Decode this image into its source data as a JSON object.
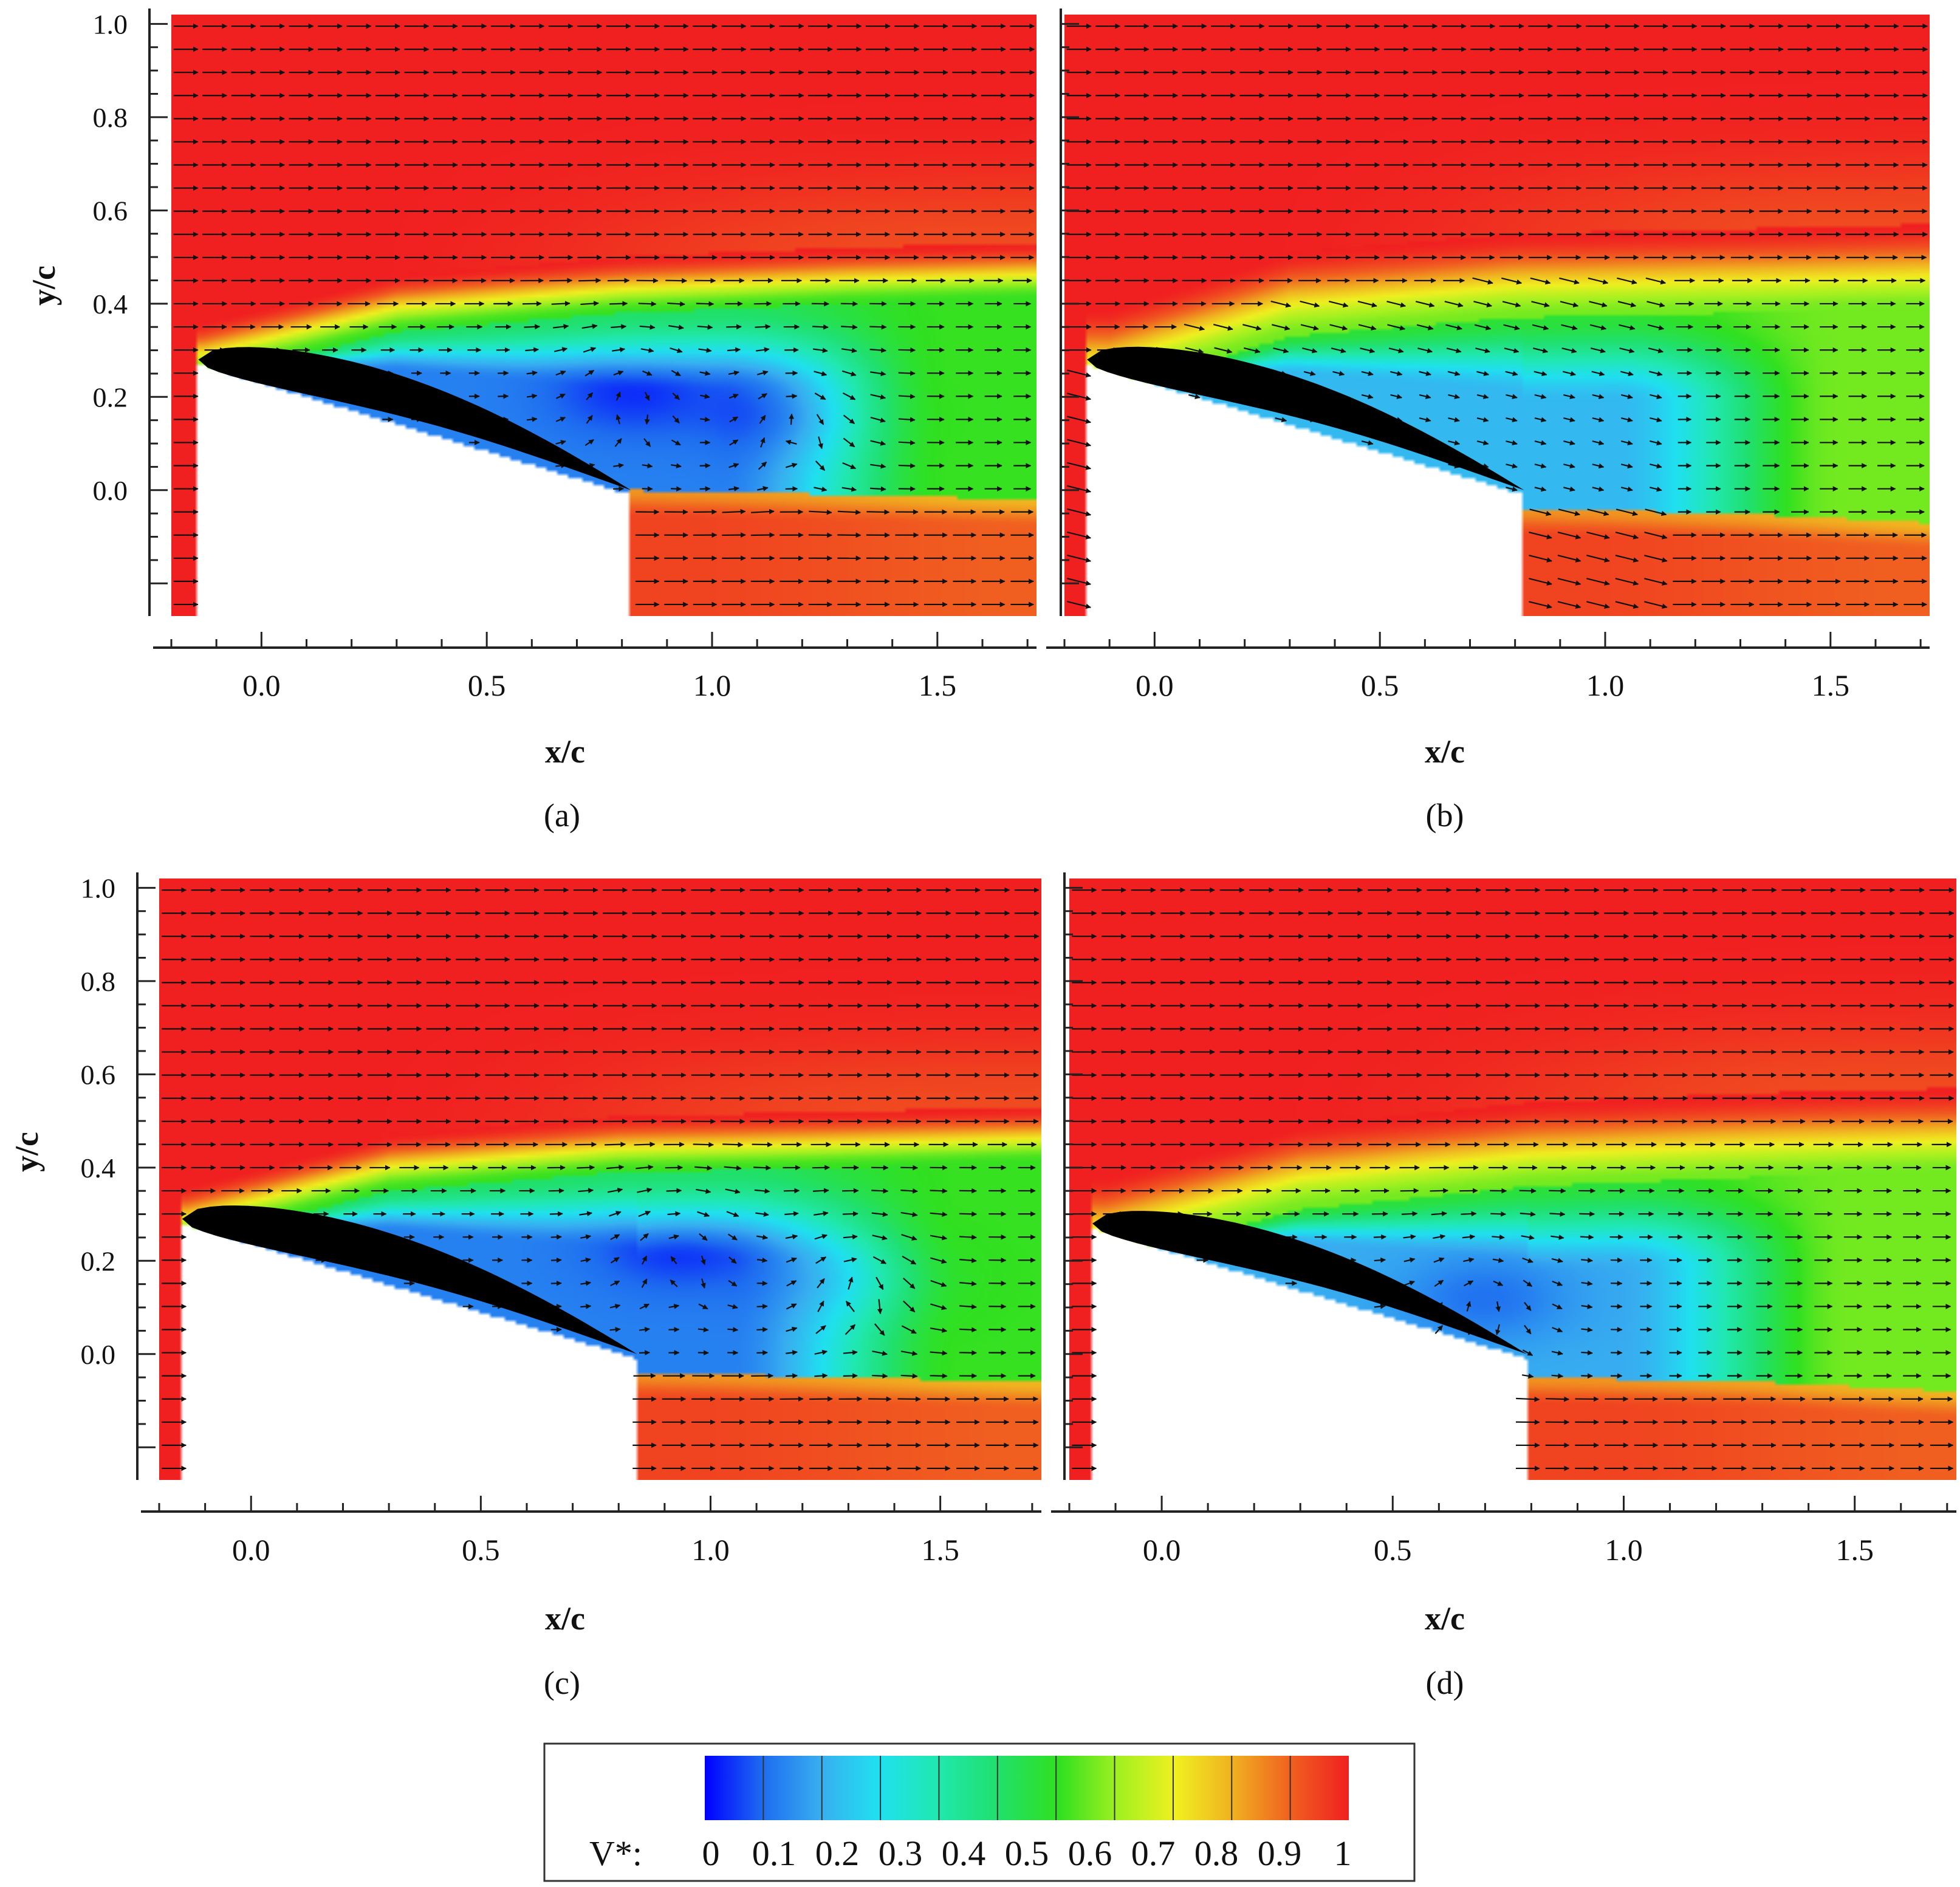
{
  "chart_data": [
    {
      "panel": "a",
      "type": "heatmap",
      "caption": "(a)",
      "xlabel": "x/c",
      "ylabel": "y/c",
      "x_ticks": [
        "0.0",
        "0.5",
        "1.0",
        "1.5"
      ],
      "y_ticks": [
        "1.0",
        "0.8",
        "0.6",
        "0.4",
        "0.2",
        "0.0"
      ],
      "xlim": [
        -0.2,
        1.72
      ],
      "ylim": [
        -0.27,
        1.02
      ],
      "airfoil": {
        "leading_edge": [
          -0.14,
          0.28
        ],
        "trailing_edge": [
          0.82,
          0.0
        ]
      },
      "vortex_centers": [
        [
          0.82,
          0.21
        ],
        [
          1.18,
          0.16
        ]
      ],
      "shear_top": [
        [
          -0.13,
          0.3
        ],
        [
          0.3,
          0.4
        ],
        [
          0.8,
          0.44
        ],
        [
          1.3,
          0.46
        ],
        [
          1.72,
          0.47
        ]
      ],
      "wake_bottom": [
        [
          0.82,
          0.0
        ],
        [
          1.3,
          -0.01
        ],
        [
          1.72,
          -0.02
        ]
      ],
      "shear_width": 0.06,
      "wake_speed": 0.55,
      "bubble_speed": 0.12,
      "field_level": 1.0
    },
    {
      "panel": "b",
      "type": "heatmap",
      "caption": "(b)",
      "xlabel": "x/c",
      "ylabel": "",
      "x_ticks": [
        "0.0",
        "0.5",
        "1.0",
        "1.5"
      ],
      "y_ticks": [],
      "xlim": [
        -0.2,
        1.72
      ],
      "ylim": [
        -0.27,
        1.02
      ],
      "airfoil": {
        "leading_edge": [
          -0.15,
          0.28
        ],
        "trailing_edge": [
          0.82,
          0.0
        ]
      },
      "vortex_centers": [],
      "shear_top": [
        [
          -0.1,
          0.3
        ],
        [
          0.3,
          0.42
        ],
        [
          0.8,
          0.46
        ],
        [
          1.3,
          0.47
        ],
        [
          1.72,
          0.48
        ]
      ],
      "wake_bottom": [
        [
          0.82,
          -0.04
        ],
        [
          1.3,
          -0.05
        ],
        [
          1.72,
          -0.07
        ]
      ],
      "shear_width": 0.09,
      "wake_speed": 0.6,
      "bubble_speed": 0.2,
      "field_level": 1.0
    },
    {
      "panel": "c",
      "type": "heatmap",
      "caption": "(c)",
      "xlabel": "x/c",
      "ylabel": "y/c",
      "x_ticks": [
        "0.0",
        "0.5",
        "1.0",
        "1.5"
      ],
      "y_ticks": [
        "1.0",
        "0.8",
        "0.6",
        "0.4",
        "0.2",
        "0.0"
      ],
      "xlim": [
        -0.2,
        1.72
      ],
      "ylim": [
        -0.27,
        1.02
      ],
      "airfoil": {
        "leading_edge": [
          -0.15,
          0.29
        ],
        "trailing_edge": [
          0.84,
          0.0
        ]
      },
      "vortex_centers": [
        [
          0.93,
          0.23
        ],
        [
          1.32,
          0.16
        ]
      ],
      "shear_top": [
        [
          -0.14,
          0.3
        ],
        [
          0.3,
          0.41
        ],
        [
          0.8,
          0.45
        ],
        [
          1.3,
          0.46
        ],
        [
          1.72,
          0.47
        ]
      ],
      "wake_bottom": [
        [
          0.84,
          -0.04
        ],
        [
          1.3,
          -0.05
        ],
        [
          1.72,
          -0.06
        ]
      ],
      "shear_width": 0.06,
      "wake_speed": 0.55,
      "bubble_speed": 0.12,
      "field_level": 1.0
    },
    {
      "panel": "d",
      "type": "heatmap",
      "caption": "(d)",
      "xlabel": "x/c",
      "ylabel": "",
      "x_ticks": [
        "0.0",
        "0.5",
        "1.0",
        "1.5"
      ],
      "y_ticks": [],
      "xlim": [
        -0.2,
        1.72
      ],
      "ylim": [
        -0.27,
        1.02
      ],
      "airfoil": {
        "leading_edge": [
          -0.15,
          0.28
        ],
        "trailing_edge": [
          0.79,
          0.0
        ]
      },
      "vortex_centers": [
        [
          0.7,
          0.12
        ]
      ],
      "shear_top": [
        [
          -0.12,
          0.29
        ],
        [
          0.3,
          0.4
        ],
        [
          0.8,
          0.45
        ],
        [
          1.3,
          0.47
        ],
        [
          1.72,
          0.48
        ]
      ],
      "wake_bottom": [
        [
          0.79,
          -0.05
        ],
        [
          1.3,
          -0.06
        ],
        [
          1.72,
          -0.08
        ]
      ],
      "shear_width": 0.09,
      "wake_speed": 0.6,
      "bubble_speed": 0.18,
      "field_level": 1.0
    }
  ],
  "colorbar": {
    "label": "V*:",
    "tick_labels": [
      "0",
      "0.1",
      "0.2",
      "0.3",
      "0.4",
      "0.5",
      "0.6",
      "0.7",
      "0.8",
      "0.9",
      "1"
    ],
    "range": [
      0,
      1
    ],
    "colors": [
      "#0000ff",
      "#1e6cf0",
      "#38aef0",
      "#20e0f0",
      "#20e8b0",
      "#20e070",
      "#30e020",
      "#a0f020",
      "#f0f020",
      "#f0b020",
      "#f06020",
      "#f02020"
    ]
  }
}
